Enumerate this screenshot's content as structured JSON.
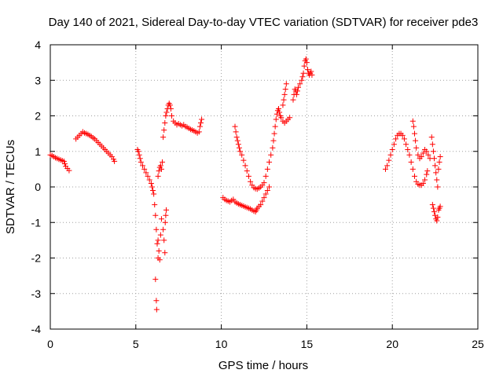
{
  "chart_data": {
    "type": "scatter",
    "title": "Day 140 of 2021, Sidereal Day-to-day VTEC variation (SDTVAR) for receiver pde3",
    "xlabel": "GPS time / hours",
    "ylabel": "SDTVAR / TECUs",
    "xlim": [
      0,
      25
    ],
    "ylim": [
      -4,
      4
    ],
    "xticks": [
      0,
      5,
      10,
      15,
      20,
      25
    ],
    "yticks": [
      -4,
      -3,
      -2,
      -1,
      0,
      1,
      2,
      3,
      4
    ],
    "xtick_labels": [
      "0",
      "5",
      "10",
      "15",
      "20",
      "25"
    ],
    "ytick_labels": [
      "-4",
      "-3",
      "-2",
      "-1",
      "0",
      "1",
      "2",
      "3",
      "4"
    ],
    "grid": true,
    "marker": "+",
    "color": "#ff0000",
    "series": [
      {
        "name": "SDTVAR",
        "points": [
          [
            0.0,
            0.9
          ],
          [
            0.1,
            0.88
          ],
          [
            0.2,
            0.85
          ],
          [
            0.3,
            0.82
          ],
          [
            0.4,
            0.8
          ],
          [
            0.5,
            0.78
          ],
          [
            0.6,
            0.76
          ],
          [
            0.7,
            0.74
          ],
          [
            0.8,
            0.72
          ],
          [
            0.85,
            0.65
          ],
          [
            0.9,
            0.58
          ],
          [
            1.0,
            0.52
          ],
          [
            1.1,
            0.46
          ],
          [
            1.5,
            1.35
          ],
          [
            1.6,
            1.4
          ],
          [
            1.7,
            1.45
          ],
          [
            1.8,
            1.5
          ],
          [
            1.9,
            1.55
          ],
          [
            2.0,
            1.52
          ],
          [
            2.1,
            1.5
          ],
          [
            2.2,
            1.48
          ],
          [
            2.3,
            1.45
          ],
          [
            2.4,
            1.42
          ],
          [
            2.5,
            1.38
          ],
          [
            2.6,
            1.35
          ],
          [
            2.7,
            1.3
          ],
          [
            2.8,
            1.25
          ],
          [
            2.9,
            1.2
          ],
          [
            3.0,
            1.15
          ],
          [
            3.1,
            1.1
          ],
          [
            3.2,
            1.05
          ],
          [
            3.3,
            1.0
          ],
          [
            3.4,
            0.95
          ],
          [
            3.5,
            0.9
          ],
          [
            3.6,
            0.85
          ],
          [
            3.7,
            0.78
          ],
          [
            3.75,
            0.72
          ],
          [
            5.1,
            1.05
          ],
          [
            5.15,
            1.0
          ],
          [
            5.2,
            0.9
          ],
          [
            5.25,
            0.8
          ],
          [
            5.3,
            0.7
          ],
          [
            5.4,
            0.6
          ],
          [
            5.5,
            0.5
          ],
          [
            5.6,
            0.4
          ],
          [
            5.7,
            0.3
          ],
          [
            5.8,
            0.2
          ],
          [
            5.9,
            0.1
          ],
          [
            5.95,
            0.0
          ],
          [
            6.0,
            -0.1
          ],
          [
            6.05,
            -0.2
          ],
          [
            6.1,
            -0.5
          ],
          [
            6.15,
            -0.8
          ],
          [
            6.2,
            -1.2
          ],
          [
            6.25,
            -1.6
          ],
          [
            6.3,
            -2.0
          ],
          [
            6.15,
            -2.6
          ],
          [
            6.2,
            -3.2
          ],
          [
            6.22,
            -3.45
          ],
          [
            6.3,
            -1.5
          ],
          [
            6.35,
            -1.8
          ],
          [
            6.4,
            -2.05
          ],
          [
            6.45,
            -1.35
          ],
          [
            6.5,
            -0.9
          ],
          [
            6.3,
            0.3
          ],
          [
            6.35,
            0.45
          ],
          [
            6.4,
            0.55
          ],
          [
            6.45,
            0.6
          ],
          [
            6.5,
            0.5
          ],
          [
            6.55,
            0.7
          ],
          [
            6.6,
            -1.2
          ],
          [
            6.65,
            -1.5
          ],
          [
            6.7,
            -1.85
          ],
          [
            6.72,
            -1.0
          ],
          [
            6.75,
            -0.8
          ],
          [
            6.78,
            -0.65
          ],
          [
            6.6,
            1.4
          ],
          [
            6.65,
            1.6
          ],
          [
            6.7,
            1.8
          ],
          [
            6.75,
            2.0
          ],
          [
            6.8,
            2.1
          ],
          [
            6.85,
            2.2
          ],
          [
            6.9,
            2.3
          ],
          [
            6.95,
            2.35
          ],
          [
            7.0,
            2.3
          ],
          [
            7.05,
            2.2
          ],
          [
            7.1,
            2.0
          ],
          [
            7.2,
            1.85
          ],
          [
            7.3,
            1.8
          ],
          [
            7.4,
            1.75
          ],
          [
            7.5,
            1.78
          ],
          [
            7.6,
            1.75
          ],
          [
            7.7,
            1.72
          ],
          [
            7.8,
            1.75
          ],
          [
            7.9,
            1.7
          ],
          [
            8.0,
            1.68
          ],
          [
            8.1,
            1.65
          ],
          [
            8.2,
            1.62
          ],
          [
            8.3,
            1.6
          ],
          [
            8.4,
            1.58
          ],
          [
            8.5,
            1.55
          ],
          [
            8.6,
            1.52
          ],
          [
            8.7,
            1.55
          ],
          [
            8.75,
            1.7
          ],
          [
            8.8,
            1.8
          ],
          [
            8.85,
            1.9
          ],
          [
            10.1,
            -0.3
          ],
          [
            10.2,
            -0.35
          ],
          [
            10.3,
            -0.38
          ],
          [
            10.4,
            -0.4
          ],
          [
            10.5,
            -0.42
          ],
          [
            10.6,
            -0.38
          ],
          [
            10.7,
            -0.35
          ],
          [
            10.8,
            -0.42
          ],
          [
            10.9,
            -0.45
          ],
          [
            11.0,
            -0.48
          ],
          [
            11.1,
            -0.5
          ],
          [
            11.2,
            -0.52
          ],
          [
            11.3,
            -0.54
          ],
          [
            11.4,
            -0.56
          ],
          [
            11.5,
            -0.58
          ],
          [
            11.6,
            -0.6
          ],
          [
            11.7,
            -0.62
          ],
          [
            11.8,
            -0.65
          ],
          [
            11.9,
            -0.68
          ],
          [
            12.0,
            -0.7
          ],
          [
            12.05,
            -0.65
          ],
          [
            12.1,
            -0.6
          ],
          [
            12.2,
            -0.55
          ],
          [
            12.3,
            -0.5
          ],
          [
            12.4,
            -0.4
          ],
          [
            12.5,
            -0.3
          ],
          [
            12.6,
            -0.2
          ],
          [
            12.7,
            -0.1
          ],
          [
            12.8,
            0.0
          ],
          [
            10.8,
            1.7
          ],
          [
            10.85,
            1.55
          ],
          [
            10.9,
            1.4
          ],
          [
            10.95,
            1.3
          ],
          [
            11.0,
            1.2
          ],
          [
            11.05,
            1.1
          ],
          [
            11.1,
            1.0
          ],
          [
            11.2,
            0.9
          ],
          [
            11.3,
            0.75
          ],
          [
            11.4,
            0.6
          ],
          [
            11.5,
            0.45
          ],
          [
            11.6,
            0.3
          ],
          [
            11.7,
            0.15
          ],
          [
            11.8,
            0.05
          ],
          [
            11.9,
            -0.02
          ],
          [
            12.0,
            -0.05
          ],
          [
            12.1,
            -0.06
          ],
          [
            12.2,
            -0.03
          ],
          [
            12.3,
            0.0
          ],
          [
            12.4,
            0.05
          ],
          [
            12.5,
            0.12
          ],
          [
            12.6,
            0.3
          ],
          [
            12.7,
            0.5
          ],
          [
            12.8,
            0.7
          ],
          [
            12.9,
            0.9
          ],
          [
            13.0,
            1.1
          ],
          [
            13.05,
            1.3
          ],
          [
            13.1,
            1.5
          ],
          [
            13.15,
            1.7
          ],
          [
            13.2,
            1.9
          ],
          [
            13.25,
            2.05
          ],
          [
            13.3,
            2.15
          ],
          [
            13.35,
            2.2
          ],
          [
            13.4,
            2.1
          ],
          [
            13.45,
            2.0
          ],
          [
            13.5,
            1.95
          ],
          [
            13.6,
            1.85
          ],
          [
            13.7,
            1.8
          ],
          [
            13.8,
            1.85
          ],
          [
            13.9,
            1.9
          ],
          [
            14.0,
            1.95
          ],
          [
            13.6,
            2.3
          ],
          [
            13.65,
            2.45
          ],
          [
            13.7,
            2.6
          ],
          [
            13.75,
            2.75
          ],
          [
            13.8,
            2.9
          ],
          [
            14.2,
            2.45
          ],
          [
            14.25,
            2.6
          ],
          [
            14.3,
            2.75
          ],
          [
            14.35,
            2.7
          ],
          [
            14.4,
            2.6
          ],
          [
            14.45,
            2.7
          ],
          [
            14.5,
            2.8
          ],
          [
            14.6,
            2.9
          ],
          [
            14.7,
            3.0
          ],
          [
            14.75,
            3.1
          ],
          [
            14.8,
            3.2
          ],
          [
            14.85,
            3.4
          ],
          [
            14.9,
            3.55
          ],
          [
            14.95,
            3.6
          ],
          [
            15.0,
            3.5
          ],
          [
            15.05,
            3.3
          ],
          [
            15.1,
            3.2
          ],
          [
            15.15,
            3.15
          ],
          [
            15.2,
            3.2
          ],
          [
            15.25,
            3.25
          ],
          [
            15.3,
            3.15
          ],
          [
            19.6,
            0.5
          ],
          [
            19.7,
            0.6
          ],
          [
            19.8,
            0.75
          ],
          [
            19.9,
            0.9
          ],
          [
            20.0,
            1.05
          ],
          [
            20.1,
            1.2
          ],
          [
            20.2,
            1.35
          ],
          [
            20.3,
            1.45
          ],
          [
            20.4,
            1.5
          ],
          [
            20.5,
            1.5
          ],
          [
            20.6,
            1.45
          ],
          [
            20.7,
            1.35
          ],
          [
            20.8,
            1.2
          ],
          [
            20.9,
            1.05
          ],
          [
            21.0,
            0.9
          ],
          [
            21.1,
            0.7
          ],
          [
            21.2,
            0.5
          ],
          [
            21.3,
            0.3
          ],
          [
            21.4,
            0.15
          ],
          [
            21.5,
            0.08
          ],
          [
            21.6,
            0.05
          ],
          [
            21.7,
            0.05
          ],
          [
            21.8,
            0.1
          ],
          [
            21.9,
            0.2
          ],
          [
            22.0,
            0.35
          ],
          [
            22.05,
            0.45
          ],
          [
            21.2,
            1.85
          ],
          [
            21.25,
            1.7
          ],
          [
            21.3,
            1.5
          ],
          [
            21.35,
            1.3
          ],
          [
            21.4,
            1.1
          ],
          [
            21.5,
            0.9
          ],
          [
            21.6,
            0.8
          ],
          [
            21.7,
            0.85
          ],
          [
            21.8,
            0.95
          ],
          [
            21.9,
            1.05
          ],
          [
            22.0,
            1.0
          ],
          [
            22.1,
            0.9
          ],
          [
            22.2,
            0.8
          ],
          [
            22.3,
            1.4
          ],
          [
            22.35,
            1.2
          ],
          [
            22.4,
            1.0
          ],
          [
            22.45,
            0.8
          ],
          [
            22.5,
            0.6
          ],
          [
            22.55,
            0.4
          ],
          [
            22.6,
            0.2
          ],
          [
            22.65,
            0.0
          ],
          [
            22.7,
            0.5
          ],
          [
            22.75,
            0.7
          ],
          [
            22.8,
            0.85
          ],
          [
            22.35,
            -0.5
          ],
          [
            22.4,
            -0.6
          ],
          [
            22.45,
            -0.7
          ],
          [
            22.5,
            -0.8
          ],
          [
            22.55,
            -0.9
          ],
          [
            22.6,
            -0.95
          ],
          [
            22.65,
            -0.85
          ],
          [
            22.7,
            -0.65
          ],
          [
            22.75,
            -0.6
          ],
          [
            22.8,
            -0.55
          ]
        ]
      }
    ]
  }
}
